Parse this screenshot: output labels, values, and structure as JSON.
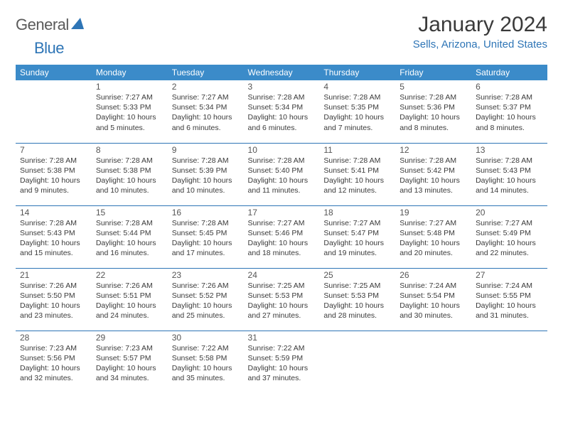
{
  "logo": {
    "text1": "General",
    "text2": "Blue"
  },
  "title": "January 2024",
  "location": "Sells, Arizona, United States",
  "colors": {
    "header_bg": "#3b8bc9",
    "header_fg": "#ffffff",
    "accent": "#2e75b6",
    "text": "#3a3a3a",
    "border": "#2e75b6"
  },
  "weekdays": [
    "Sunday",
    "Monday",
    "Tuesday",
    "Wednesday",
    "Thursday",
    "Friday",
    "Saturday"
  ],
  "layout": {
    "first_weekday_index": 1,
    "days_in_month": 31,
    "rows": 5
  },
  "days": {
    "1": {
      "sunrise": "7:27 AM",
      "sunset": "5:33 PM",
      "daylight": "10 hours and 5 minutes."
    },
    "2": {
      "sunrise": "7:27 AM",
      "sunset": "5:34 PM",
      "daylight": "10 hours and 6 minutes."
    },
    "3": {
      "sunrise": "7:28 AM",
      "sunset": "5:34 PM",
      "daylight": "10 hours and 6 minutes."
    },
    "4": {
      "sunrise": "7:28 AM",
      "sunset": "5:35 PM",
      "daylight": "10 hours and 7 minutes."
    },
    "5": {
      "sunrise": "7:28 AM",
      "sunset": "5:36 PM",
      "daylight": "10 hours and 8 minutes."
    },
    "6": {
      "sunrise": "7:28 AM",
      "sunset": "5:37 PM",
      "daylight": "10 hours and 8 minutes."
    },
    "7": {
      "sunrise": "7:28 AM",
      "sunset": "5:38 PM",
      "daylight": "10 hours and 9 minutes."
    },
    "8": {
      "sunrise": "7:28 AM",
      "sunset": "5:38 PM",
      "daylight": "10 hours and 10 minutes."
    },
    "9": {
      "sunrise": "7:28 AM",
      "sunset": "5:39 PM",
      "daylight": "10 hours and 10 minutes."
    },
    "10": {
      "sunrise": "7:28 AM",
      "sunset": "5:40 PM",
      "daylight": "10 hours and 11 minutes."
    },
    "11": {
      "sunrise": "7:28 AM",
      "sunset": "5:41 PM",
      "daylight": "10 hours and 12 minutes."
    },
    "12": {
      "sunrise": "7:28 AM",
      "sunset": "5:42 PM",
      "daylight": "10 hours and 13 minutes."
    },
    "13": {
      "sunrise": "7:28 AM",
      "sunset": "5:43 PM",
      "daylight": "10 hours and 14 minutes."
    },
    "14": {
      "sunrise": "7:28 AM",
      "sunset": "5:43 PM",
      "daylight": "10 hours and 15 minutes."
    },
    "15": {
      "sunrise": "7:28 AM",
      "sunset": "5:44 PM",
      "daylight": "10 hours and 16 minutes."
    },
    "16": {
      "sunrise": "7:28 AM",
      "sunset": "5:45 PM",
      "daylight": "10 hours and 17 minutes."
    },
    "17": {
      "sunrise": "7:27 AM",
      "sunset": "5:46 PM",
      "daylight": "10 hours and 18 minutes."
    },
    "18": {
      "sunrise": "7:27 AM",
      "sunset": "5:47 PM",
      "daylight": "10 hours and 19 minutes."
    },
    "19": {
      "sunrise": "7:27 AM",
      "sunset": "5:48 PM",
      "daylight": "10 hours and 20 minutes."
    },
    "20": {
      "sunrise": "7:27 AM",
      "sunset": "5:49 PM",
      "daylight": "10 hours and 22 minutes."
    },
    "21": {
      "sunrise": "7:26 AM",
      "sunset": "5:50 PM",
      "daylight": "10 hours and 23 minutes."
    },
    "22": {
      "sunrise": "7:26 AM",
      "sunset": "5:51 PM",
      "daylight": "10 hours and 24 minutes."
    },
    "23": {
      "sunrise": "7:26 AM",
      "sunset": "5:52 PM",
      "daylight": "10 hours and 25 minutes."
    },
    "24": {
      "sunrise": "7:25 AM",
      "sunset": "5:53 PM",
      "daylight": "10 hours and 27 minutes."
    },
    "25": {
      "sunrise": "7:25 AM",
      "sunset": "5:53 PM",
      "daylight": "10 hours and 28 minutes."
    },
    "26": {
      "sunrise": "7:24 AM",
      "sunset": "5:54 PM",
      "daylight": "10 hours and 30 minutes."
    },
    "27": {
      "sunrise": "7:24 AM",
      "sunset": "5:55 PM",
      "daylight": "10 hours and 31 minutes."
    },
    "28": {
      "sunrise": "7:23 AM",
      "sunset": "5:56 PM",
      "daylight": "10 hours and 32 minutes."
    },
    "29": {
      "sunrise": "7:23 AM",
      "sunset": "5:57 PM",
      "daylight": "10 hours and 34 minutes."
    },
    "30": {
      "sunrise": "7:22 AM",
      "sunset": "5:58 PM",
      "daylight": "10 hours and 35 minutes."
    },
    "31": {
      "sunrise": "7:22 AM",
      "sunset": "5:59 PM",
      "daylight": "10 hours and 37 minutes."
    }
  },
  "labels": {
    "sunrise": "Sunrise: ",
    "sunset": "Sunset: ",
    "daylight": "Daylight: "
  }
}
